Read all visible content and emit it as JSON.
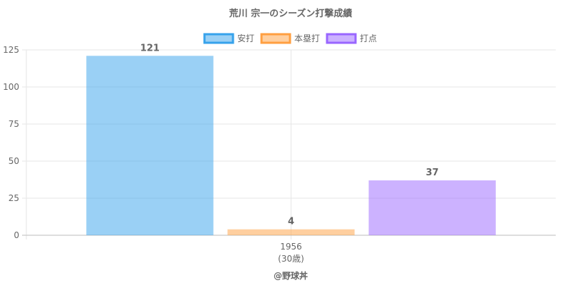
{
  "chart_data": {
    "type": "bar",
    "title": "荒川 宗一のシーズン打撃成績",
    "categories": [
      "1956"
    ],
    "category_sublabels": [
      "(30歳)"
    ],
    "series": [
      {
        "name": "安打",
        "values": [
          121
        ],
        "color": "#36a2eb",
        "fill": "rgba(54,162,235,0.5)"
      },
      {
        "name": "本塁打",
        "values": [
          4
        ],
        "color": "#ff9f40",
        "fill": "rgba(255,159,64,0.5)"
      },
      {
        "name": "打点",
        "values": [
          37
        ],
        "color": "#9966ff",
        "fill": "rgba(153,102,255,0.5)"
      }
    ],
    "ylim": [
      0,
      125
    ],
    "yticks": [
      0,
      25,
      50,
      75,
      100,
      125
    ],
    "grid": true,
    "legend_position": "top",
    "credit": "@野球丼"
  }
}
